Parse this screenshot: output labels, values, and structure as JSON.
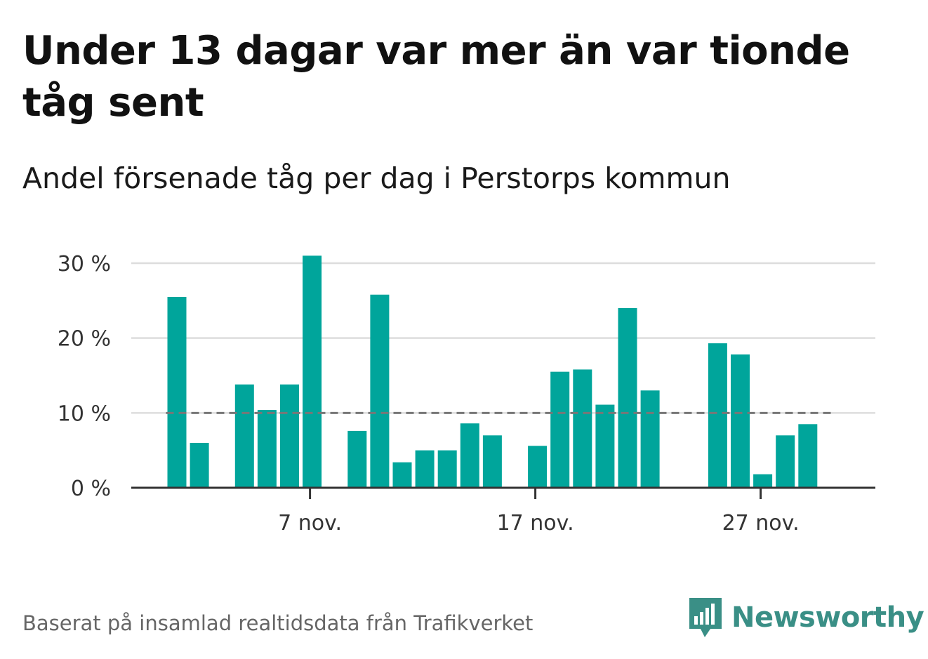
{
  "header": {
    "title": "Under 13 dagar var mer än var tionde tåg sent",
    "subtitle": "Andel försenade tåg per dag i Perstorps kommun"
  },
  "footer": {
    "source": "Baserat på insamlad realtidsdata från Trafikverket",
    "brand": "Newsworthy",
    "brand_icon": "bar-chart-speech-bubble-icon"
  },
  "colors": {
    "bar": "#00a59b",
    "reference_line": "#777777",
    "grid": "#dddddd",
    "axis": "#333333",
    "brand": "#3a8f86"
  },
  "chart_data": {
    "type": "bar",
    "title": "Andel försenade tåg per dag i Perstorps kommun",
    "xlabel": "",
    "ylabel": "",
    "x_unit": "day of November",
    "x": [
      1,
      2,
      3,
      4,
      5,
      6,
      7,
      8,
      9,
      10,
      11,
      12,
      13,
      14,
      15,
      16,
      17,
      18,
      19,
      20,
      21,
      22,
      23,
      24,
      25,
      26,
      27,
      28,
      29,
      30
    ],
    "values": [
      25.5,
      6,
      null,
      13.8,
      10.4,
      13.8,
      31,
      null,
      7.6,
      25.8,
      3.4,
      5,
      5,
      8.6,
      7,
      null,
      5.6,
      15.5,
      15.8,
      11.1,
      24,
      13,
      null,
      null,
      19.3,
      17.8,
      1.8,
      7,
      8.5,
      null
    ],
    "ylim": [
      0,
      30
    ],
    "y_ticks": [
      0,
      10,
      20,
      30
    ],
    "y_tick_labels": [
      "0 %",
      "10 %",
      "20 %",
      "30 %"
    ],
    "x_ticks": [
      7,
      17,
      27
    ],
    "x_tick_labels": [
      "7 nov.",
      "17 nov.",
      "27 nov."
    ],
    "reference_line": {
      "value": 10,
      "style": "dashed"
    },
    "grid": true,
    "legend": "none"
  }
}
